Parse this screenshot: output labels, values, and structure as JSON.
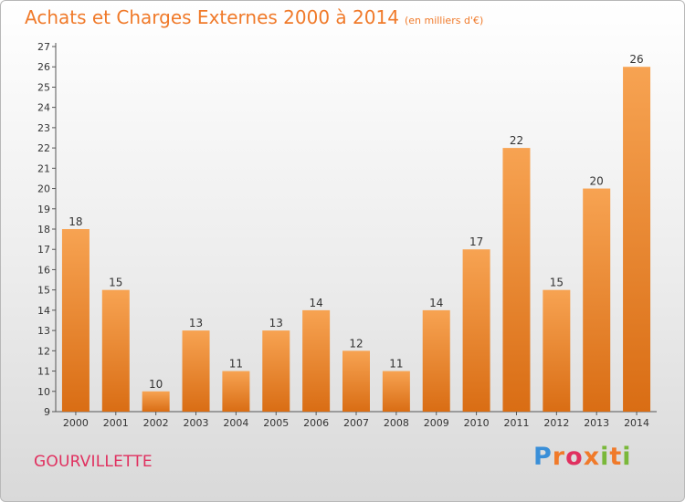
{
  "header": {
    "title": "Achats et Charges Externes 2000 à 2014",
    "unit": "(en milliers d'€)"
  },
  "footer": {
    "place": "GOURVILLETTE",
    "logo": "Proxiti"
  },
  "colors": {
    "title": "#f07a2a",
    "bar_light": "#f7a352",
    "bar_dark": "#d96d14",
    "place": "#e0305f"
  },
  "chart_data": {
    "type": "bar",
    "title": "Achats et Charges Externes 2000 à 2014",
    "xlabel": "",
    "ylabel": "",
    "ylim": [
      9,
      27
    ],
    "yticks": [
      9,
      10,
      11,
      12,
      13,
      14,
      15,
      16,
      17,
      18,
      19,
      20,
      21,
      22,
      23,
      24,
      25,
      26,
      27
    ],
    "grid": false,
    "categories": [
      "2000",
      "2001",
      "2002",
      "2003",
      "2004",
      "2005",
      "2006",
      "2007",
      "2008",
      "2009",
      "2010",
      "2011",
      "2012",
      "2013",
      "2014"
    ],
    "values": [
      18,
      15,
      10,
      13,
      11,
      13,
      14,
      12,
      11,
      14,
      17,
      22,
      15,
      20,
      26
    ],
    "data_labels": true
  }
}
